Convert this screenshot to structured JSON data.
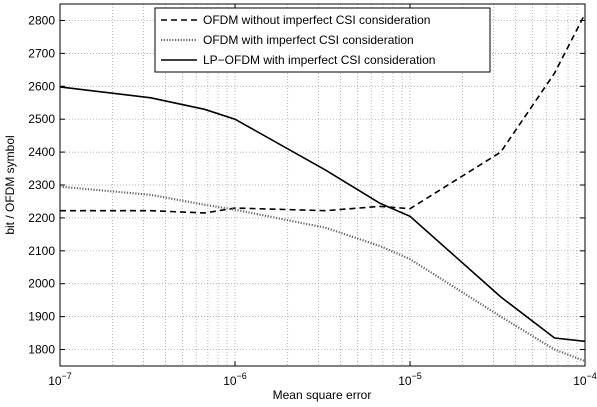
{
  "chart_data": {
    "type": "line",
    "xlabel": "Mean square error",
    "ylabel": "bit / OFDM symbol",
    "x": [
      1e-07,
      3.3e-07,
      6.7e-07,
      1e-06,
      3.3e-06,
      6.7e-06,
      1e-05,
      3.3e-05,
      6.7e-05,
      0.0001
    ],
    "series": [
      {
        "name": "OFDM without imperfect CSI consideration",
        "color": "#000000",
        "style": "dashed",
        "values": [
          2222,
          2222,
          2215,
          2230,
          2222,
          2235,
          2228,
          2400,
          2640,
          2820
        ]
      },
      {
        "name": "OFDM with imperfect CSI consideration",
        "color": "#666666",
        "style": "dotted",
        "values": [
          2295,
          2270,
          2240,
          2225,
          2170,
          2115,
          2075,
          1900,
          1800,
          1765
        ]
      },
      {
        "name": "LP−OFDM with imperfect CSI consideration",
        "color": "#000000",
        "style": "solid",
        "values": [
          2598,
          2565,
          2530,
          2500,
          2345,
          2245,
          2205,
          1960,
          1835,
          1825
        ]
      }
    ],
    "xscale": "log",
    "xlim": [
      1e-07,
      0.0001
    ],
    "xticks": [
      {
        "value": 1e-07,
        "label": "10",
        "exponent": "−7"
      },
      {
        "value": 1e-06,
        "label": "10",
        "exponent": "−6"
      },
      {
        "value": 1e-05,
        "label": "10",
        "exponent": "−5"
      },
      {
        "value": 0.0001,
        "label": "10",
        "exponent": "−4"
      }
    ],
    "ylim": [
      1750,
      2850
    ],
    "yticks": [
      1800,
      1900,
      2000,
      2100,
      2200,
      2300,
      2400,
      2500,
      2600,
      2700,
      2800
    ],
    "grid": true,
    "minor_grid": true,
    "legend": "top"
  }
}
